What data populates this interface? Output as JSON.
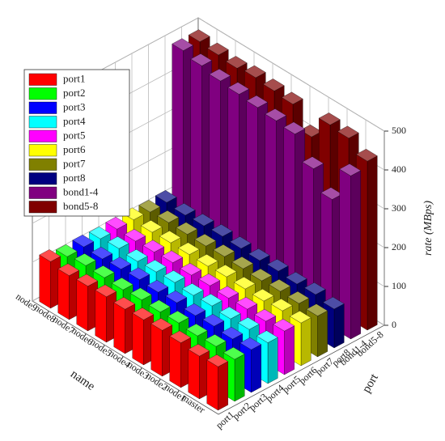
{
  "chart_data": {
    "type": "bar3d",
    "categories": [
      "master",
      "node1",
      "node2",
      "node3",
      "node4",
      "node5",
      "node6",
      "node7",
      "node8",
      "node9"
    ],
    "category_axis_label": "name",
    "series_axis_label": "port",
    "value_axis_label": "rate (MBps)",
    "ylim": [
      0,
      500
    ],
    "yticks": [
      0,
      100,
      200,
      300,
      400,
      500
    ],
    "grid": true,
    "legend": "top-left",
    "series": [
      {
        "name": "port1",
        "color": "#ff0000",
        "values": [
          112,
          110,
          115,
          118,
          116,
          114,
          117,
          115,
          113,
          120
        ]
      },
      {
        "name": "port2",
        "color": "#00ff00",
        "values": [
          108,
          112,
          110,
          114,
          113,
          115,
          112,
          114,
          116,
          110
        ]
      },
      {
        "name": "port3",
        "color": "#0000ff",
        "values": [
          110,
          108,
          112,
          110,
          114,
          112,
          115,
          113,
          110,
          112
        ]
      },
      {
        "name": "port4",
        "color": "#00ffff",
        "values": [
          105,
          110,
          108,
          112,
          110,
          114,
          112,
          110,
          114,
          110
        ]
      },
      {
        "name": "port5",
        "color": "#ff00ff",
        "values": [
          112,
          108,
          110,
          109,
          112,
          110,
          113,
          111,
          110,
          112
        ]
      },
      {
        "name": "port6",
        "color": "#ffff00",
        "values": [
          110,
          112,
          108,
          110,
          112,
          110,
          111,
          112,
          110,
          113
        ]
      },
      {
        "name": "port7",
        "color": "#808000",
        "values": [
          105,
          108,
          110,
          108,
          110,
          112,
          110,
          111,
          112,
          110
        ]
      },
      {
        "name": "port8",
        "color": "#000080",
        "values": [
          100,
          108,
          106,
          110,
          108,
          110,
          112,
          110,
          108,
          112
        ]
      },
      {
        "name": "bond1-4",
        "color": "#800080",
        "values": [
          420,
          330,
          380,
          440,
          445,
          450,
          455,
          460,
          470,
          480
        ]
      },
      {
        "name": "bond5-8",
        "color": "#800000",
        "values": [
          435,
          465,
          470,
          410,
          465,
          470,
          475,
          470,
          475,
          480
        ]
      }
    ]
  }
}
